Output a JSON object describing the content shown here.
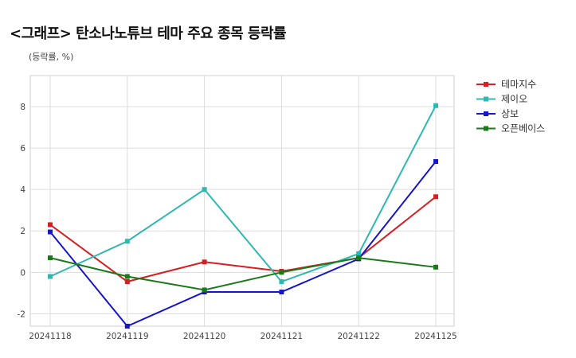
{
  "chart_data": {
    "type": "line",
    "title": "<그래프> 탄소나노튜브 테마 주요 종목 등락률",
    "ylabel": "(등락률, %)",
    "xlabel": "",
    "categories": [
      "20241118",
      "20241119",
      "20241120",
      "20241121",
      "20241122",
      "20241125"
    ],
    "ylim": [
      -2.6,
      9.5
    ],
    "yticks": [
      -2,
      0,
      2,
      4,
      6,
      8
    ],
    "grid": true,
    "legend_position": "right",
    "series": [
      {
        "name": "테마지수",
        "color": "#d42020",
        "values": [
          2.3,
          -0.45,
          0.5,
          0.05,
          0.7,
          3.65
        ]
      },
      {
        "name": "제이오",
        "color": "#2fb8b0",
        "values": [
          -0.2,
          1.5,
          4.0,
          -0.45,
          0.9,
          8.05
        ]
      },
      {
        "name": "상보",
        "color": "#1616c8",
        "values": [
          1.95,
          -2.6,
          -0.95,
          -0.95,
          0.65,
          5.35
        ]
      },
      {
        "name": "오픈베이스",
        "color": "#1a7a1a",
        "values": [
          0.7,
          -0.2,
          -0.85,
          0.0,
          0.7,
          0.25
        ]
      }
    ]
  }
}
